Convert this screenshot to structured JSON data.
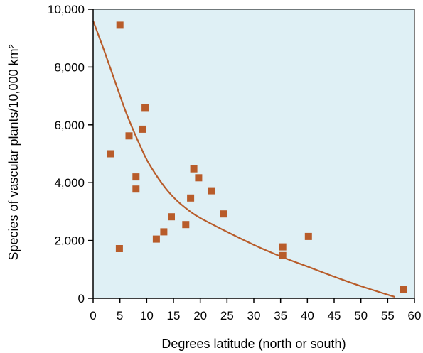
{
  "chart_data": {
    "type": "scatter",
    "title": "",
    "xlabel": "Degrees latitude (north or south)",
    "ylabel": "Species of vascular plants/10,000 km²",
    "xlim": [
      0,
      60
    ],
    "ylim": [
      0,
      10000
    ],
    "x_ticks": [
      0,
      5,
      10,
      15,
      20,
      25,
      30,
      35,
      40,
      45,
      50,
      55,
      60
    ],
    "x_tick_labels": [
      "0",
      "5",
      "10",
      "15",
      "20",
      "25",
      "30",
      "35",
      "40",
      "45",
      "50",
      "55",
      "60"
    ],
    "y_ticks": [
      0,
      2000,
      4000,
      6000,
      8000,
      10000
    ],
    "y_tick_labels": [
      "0",
      "2,000",
      "4,000",
      "6,000",
      "8,000",
      "10,000"
    ],
    "grid": false,
    "colors": {
      "plot_background": "#dff0f5",
      "marker": "#b85c2a",
      "trend_line": "#b85c2a"
    },
    "series": [
      {
        "kind": "points",
        "points": [
          {
            "x": 5.0,
            "y": 9450
          },
          {
            "x": 3.3,
            "y": 5000
          },
          {
            "x": 6.7,
            "y": 5620
          },
          {
            "x": 9.2,
            "y": 5850
          },
          {
            "x": 9.7,
            "y": 6600
          },
          {
            "x": 8.0,
            "y": 4200
          },
          {
            "x": 8.0,
            "y": 3780
          },
          {
            "x": 4.9,
            "y": 1720
          },
          {
            "x": 11.8,
            "y": 2050
          },
          {
            "x": 13.2,
            "y": 2300
          },
          {
            "x": 14.6,
            "y": 2820
          },
          {
            "x": 17.3,
            "y": 2550
          },
          {
            "x": 18.2,
            "y": 3470
          },
          {
            "x": 18.8,
            "y": 4480
          },
          {
            "x": 19.7,
            "y": 4170
          },
          {
            "x": 22.1,
            "y": 3720
          },
          {
            "x": 24.4,
            "y": 2920
          },
          {
            "x": 35.4,
            "y": 1780
          },
          {
            "x": 35.4,
            "y": 1480
          },
          {
            "x": 40.2,
            "y": 2140
          },
          {
            "x": 57.9,
            "y": 300
          }
        ]
      },
      {
        "kind": "trend-line",
        "points": [
          {
            "x": 0,
            "y": 9600
          },
          {
            "x": 2,
            "y": 8600
          },
          {
            "x": 4,
            "y": 7550
          },
          {
            "x": 6,
            "y": 6500
          },
          {
            "x": 8,
            "y": 5600
          },
          {
            "x": 10,
            "y": 4800
          },
          {
            "x": 12,
            "y": 4200
          },
          {
            "x": 14,
            "y": 3700
          },
          {
            "x": 16,
            "y": 3320
          },
          {
            "x": 18,
            "y": 3020
          },
          {
            "x": 20,
            "y": 2780
          },
          {
            "x": 25,
            "y": 2300
          },
          {
            "x": 30,
            "y": 1850
          },
          {
            "x": 35,
            "y": 1450
          },
          {
            "x": 40,
            "y": 1100
          },
          {
            "x": 45,
            "y": 750
          },
          {
            "x": 50,
            "y": 420
          },
          {
            "x": 56.3,
            "y": 50
          }
        ]
      }
    ]
  }
}
